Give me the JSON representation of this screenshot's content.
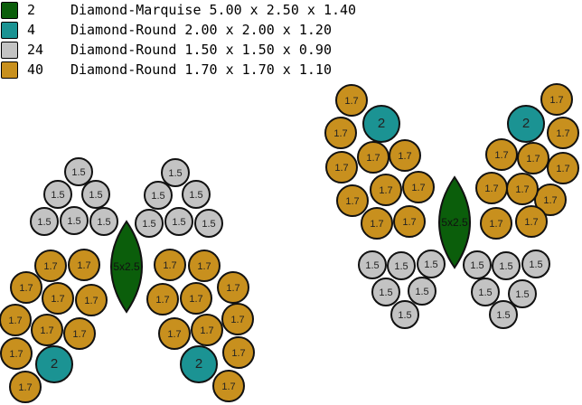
{
  "legend": [
    {
      "count": "2",
      "desc": "Diamond-Marquise 5.00 x 2.50 x 1.40",
      "color": "#0b5e0b"
    },
    {
      "count": "4",
      "desc": "Diamond-Round 2.00 x 2.00 x 1.20",
      "color": "#1b9393"
    },
    {
      "count": "24",
      "desc": "Diamond-Round 1.50 x 1.50 x 0.90",
      "color": "#c3c3c3"
    },
    {
      "count": "40",
      "desc": "Diamond-Round 1.70 x 1.70 x 1.10",
      "color": "#c8901e"
    }
  ],
  "labels": {
    "marquise": "5x2.5",
    "r2": "2",
    "r15": "1.5",
    "r17": "1.7"
  }
}
